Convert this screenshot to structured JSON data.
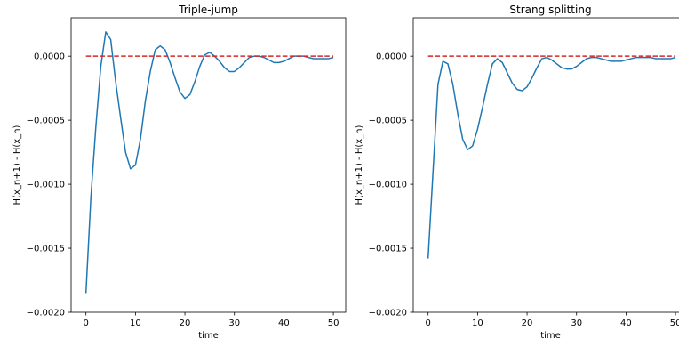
{
  "figure": {
    "background": "#ffffff"
  },
  "chart_data": [
    {
      "type": "line",
      "title": "Triple-jump",
      "xlabel": "time",
      "ylabel": "H(x_n+1) - H(x_n)",
      "xlim": [
        -3,
        52.5
      ],
      "ylim": [
        -0.002,
        0.0003
      ],
      "xticks": [
        0,
        10,
        20,
        30,
        40,
        50
      ],
      "xtick_labels": [
        "0",
        "10",
        "20",
        "30",
        "40",
        "50"
      ],
      "yticks": [
        0.0,
        -0.0005,
        -0.001,
        -0.0015,
        -0.002
      ],
      "ytick_labels": [
        "0.0000",
        "−0.0005",
        "−0.0010",
        "−0.0015",
        "−0.0020"
      ],
      "grid": false,
      "series": [
        {
          "color": "#1f77b4",
          "style": "solid",
          "x": [
            0,
            1,
            2,
            3,
            4,
            5,
            6,
            7,
            8,
            9,
            10,
            11,
            12,
            13,
            14,
            15,
            16,
            17,
            18,
            19,
            20,
            21,
            22,
            23,
            24,
            25,
            26,
            27,
            28,
            29,
            30,
            31,
            32,
            33,
            34,
            35,
            36,
            37,
            38,
            39,
            40,
            41,
            42,
            43,
            44,
            45,
            46,
            47,
            48,
            49,
            50
          ],
          "y": [
            -0.00185,
            -0.0011,
            -0.00055,
            -8e-05,
            0.00019,
            0.00013,
            -0.0002,
            -0.00048,
            -0.00075,
            -0.00088,
            -0.00085,
            -0.00065,
            -0.00035,
            -0.00012,
            5e-05,
            8e-05,
            5e-05,
            -5e-05,
            -0.00017,
            -0.00028,
            -0.00033,
            -0.0003,
            -0.0002,
            -8e-05,
            1e-05,
            3e-05,
            0.0,
            -4e-05,
            -9e-05,
            -0.00012,
            -0.00012,
            -9e-05,
            -5e-05,
            -1e-05,
            0.0,
            0.0,
            -1e-05,
            -3e-05,
            -5e-05,
            -5e-05,
            -4e-05,
            -2e-05,
            0.0,
            0.0,
            0.0,
            -1e-05,
            -2e-05,
            -2e-05,
            -2e-05,
            -2e-05,
            -1e-05
          ]
        },
        {
          "color": "#d62728",
          "style": "dashed",
          "x": [
            0,
            50
          ],
          "y": [
            0.0,
            0.0
          ]
        }
      ]
    },
    {
      "type": "line",
      "title": "Strang splitting",
      "xlabel": "time",
      "ylabel": "H(x_n+1) - H(x_n)",
      "xlim": [
        -3,
        52.5
      ],
      "ylim": [
        -0.002,
        0.0003
      ],
      "xticks": [
        0,
        10,
        20,
        30,
        40,
        50
      ],
      "xtick_labels": [
        "0",
        "10",
        "20",
        "30",
        "40",
        "50"
      ],
      "yticks": [
        0.0,
        -0.0005,
        -0.001,
        -0.0015,
        -0.002
      ],
      "ytick_labels": [
        "0.0000",
        "−0.0005",
        "−0.0010",
        "−0.0015",
        "−0.0020"
      ],
      "grid": false,
      "series": [
        {
          "color": "#1f77b4",
          "style": "solid",
          "x": [
            0,
            1,
            2,
            3,
            4,
            5,
            6,
            7,
            8,
            9,
            10,
            11,
            12,
            13,
            14,
            15,
            16,
            17,
            18,
            19,
            20,
            21,
            22,
            23,
            24,
            25,
            26,
            27,
            28,
            29,
            30,
            31,
            32,
            33,
            34,
            35,
            36,
            37,
            38,
            39,
            40,
            41,
            42,
            43,
            44,
            45,
            46,
            47,
            48,
            49,
            50
          ],
          "y": [
            -0.00158,
            -0.0009,
            -0.00022,
            -4e-05,
            -6e-05,
            -0.00022,
            -0.00045,
            -0.00065,
            -0.00073,
            -0.0007,
            -0.00057,
            -0.0004,
            -0.00022,
            -6e-05,
            -2e-05,
            -5e-05,
            -0.00013,
            -0.00021,
            -0.00026,
            -0.00027,
            -0.00024,
            -0.00017,
            -9e-05,
            -2e-05,
            -1e-05,
            -3e-05,
            -6e-05,
            -9e-05,
            -0.0001,
            -0.0001,
            -8e-05,
            -5e-05,
            -2e-05,
            -1e-05,
            -1e-05,
            -2e-05,
            -3e-05,
            -4e-05,
            -4e-05,
            -4e-05,
            -3e-05,
            -2e-05,
            -1e-05,
            -1e-05,
            -1e-05,
            -1e-05,
            -2e-05,
            -2e-05,
            -2e-05,
            -2e-05,
            -1e-05
          ]
        },
        {
          "color": "#d62728",
          "style": "dashed",
          "x": [
            0,
            50
          ],
          "y": [
            0.0,
            0.0
          ]
        }
      ]
    }
  ]
}
